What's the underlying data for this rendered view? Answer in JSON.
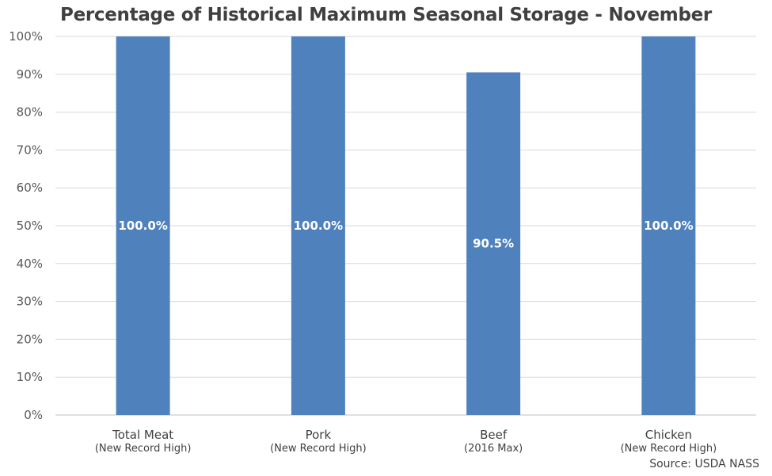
{
  "chart_data": {
    "type": "bar",
    "title": "Percentage of Historical Maximum Seasonal Storage - November",
    "categories": [
      "Total Meat",
      "Pork",
      "Beef",
      "Chicken"
    ],
    "category_sublabels": [
      "(New Record High)",
      "(New Record High)",
      "(2016 Max)",
      "(New Record High)"
    ],
    "values": [
      100.0,
      100.0,
      90.5,
      100.0
    ],
    "data_labels": [
      "100.0%",
      "100.0%",
      "90.5%",
      "100.0%"
    ],
    "ylim": [
      0,
      100
    ],
    "yticks": [
      "0%",
      "10%",
      "20%",
      "30%",
      "40%",
      "50%",
      "60%",
      "70%",
      "80%",
      "90%",
      "100%"
    ],
    "grid": true,
    "bar_color": "#4F81BD",
    "xlabel": "",
    "ylabel": ""
  },
  "source": "Source: USDA NASS"
}
